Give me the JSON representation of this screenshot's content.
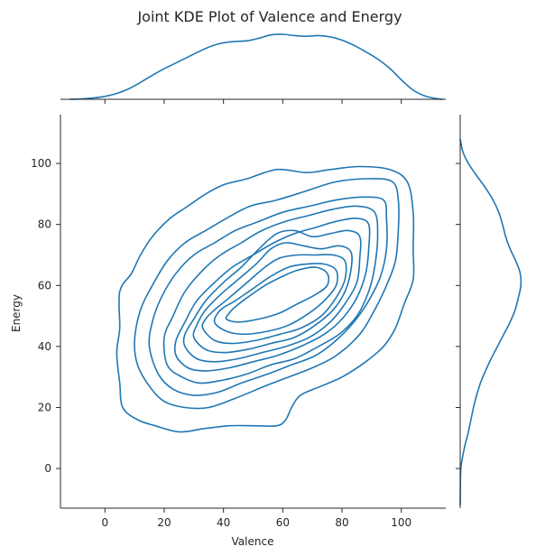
{
  "chart_data": {
    "type": "kde-joint",
    "title": "Joint KDE Plot of Valence and Energy",
    "xlabel": "Valence",
    "ylabel": "Energy",
    "xlim": [
      -15,
      115
    ],
    "ylim": [
      -13,
      116
    ],
    "xticks": [
      0,
      20,
      40,
      60,
      80,
      100
    ],
    "yticks": [
      0,
      20,
      40,
      60,
      80,
      100
    ],
    "grid": false,
    "color": "#1f77b4",
    "contours": [
      [
        [
          11,
          16
        ],
        [
          17,
          14
        ],
        [
          25,
          12
        ],
        [
          33,
          13
        ],
        [
          42,
          14
        ],
        [
          50,
          14
        ],
        [
          58,
          14
        ],
        [
          61,
          16
        ],
        [
          63,
          20
        ],
        [
          66,
          24
        ],
        [
          73,
          27
        ],
        [
          80,
          30
        ],
        [
          88,
          35
        ],
        [
          94,
          40
        ],
        [
          98,
          46
        ],
        [
          101,
          54
        ],
        [
          104,
          62
        ],
        [
          104,
          72
        ],
        [
          104,
          84
        ],
        [
          102,
          94
        ],
        [
          96,
          98
        ],
        [
          86,
          99
        ],
        [
          76,
          98
        ],
        [
          68,
          97
        ],
        [
          58,
          98
        ],
        [
          48,
          95
        ],
        [
          40,
          93
        ],
        [
          34,
          90
        ],
        [
          28,
          86
        ],
        [
          22,
          82
        ],
        [
          16,
          76
        ],
        [
          12,
          70
        ],
        [
          9,
          64
        ],
        [
          5,
          58
        ],
        [
          5,
          46
        ],
        [
          4,
          38
        ],
        [
          5,
          28
        ],
        [
          6,
          20
        ]
      ],
      [
        [
          15,
          27
        ],
        [
          20,
          22
        ],
        [
          27,
          20
        ],
        [
          35,
          20
        ],
        [
          44,
          23
        ],
        [
          54,
          27
        ],
        [
          62,
          30
        ],
        [
          70,
          33
        ],
        [
          78,
          37
        ],
        [
          86,
          44
        ],
        [
          91,
          52
        ],
        [
          95,
          60
        ],
        [
          98,
          68
        ],
        [
          99,
          78
        ],
        [
          99,
          88
        ],
        [
          97,
          94
        ],
        [
          89,
          95
        ],
        [
          78,
          94
        ],
        [
          68,
          91
        ],
        [
          58,
          88
        ],
        [
          49,
          86
        ],
        [
          41,
          82
        ],
        [
          34,
          78
        ],
        [
          27,
          74
        ],
        [
          21,
          68
        ],
        [
          16,
          60
        ],
        [
          12,
          52
        ],
        [
          10,
          42
        ],
        [
          11,
          34
        ]
      ],
      [
        [
          18,
          31
        ],
        [
          23,
          26
        ],
        [
          30,
          24
        ],
        [
          38,
          25
        ],
        [
          46,
          28
        ],
        [
          55,
          31
        ],
        [
          63,
          34
        ],
        [
          71,
          37
        ],
        [
          78,
          42
        ],
        [
          84,
          48
        ],
        [
          89,
          55
        ],
        [
          93,
          63
        ],
        [
          95,
          72
        ],
        [
          95,
          82
        ],
        [
          94,
          88
        ],
        [
          87,
          89
        ],
        [
          78,
          88
        ],
        [
          69,
          86
        ],
        [
          60,
          84
        ],
        [
          52,
          81
        ],
        [
          44,
          78
        ],
        [
          37,
          74
        ],
        [
          30,
          70
        ],
        [
          24,
          64
        ],
        [
          19,
          56
        ],
        [
          16,
          48
        ],
        [
          15,
          40
        ]
      ],
      [
        [
          21,
          34
        ],
        [
          26,
          30
        ],
        [
          32,
          28
        ],
        [
          40,
          29
        ],
        [
          48,
          31
        ],
        [
          56,
          34
        ],
        [
          64,
          36
        ],
        [
          72,
          40
        ],
        [
          79,
          44
        ],
        [
          85,
          50
        ],
        [
          89,
          58
        ],
        [
          91,
          66
        ],
        [
          92,
          76
        ],
        [
          91,
          84
        ],
        [
          85,
          86
        ],
        [
          77,
          85
        ],
        [
          69,
          83
        ],
        [
          61,
          81
        ],
        [
          53,
          78
        ],
        [
          46,
          74
        ],
        [
          39,
          70
        ],
        [
          33,
          65
        ],
        [
          27,
          58
        ],
        [
          23,
          50
        ],
        [
          20,
          43
        ]
      ],
      [
        [
          24,
          37
        ],
        [
          28,
          33
        ],
        [
          34,
          32
        ],
        [
          42,
          33
        ],
        [
          50,
          35
        ],
        [
          58,
          37
        ],
        [
          66,
          40
        ],
        [
          74,
          44
        ],
        [
          80,
          49
        ],
        [
          85,
          56
        ],
        [
          88,
          64
        ],
        [
          89,
          72
        ],
        [
          89,
          80
        ],
        [
          85,
          82
        ],
        [
          78,
          81
        ],
        [
          71,
          79
        ],
        [
          64,
          77
        ],
        [
          57,
          74
        ],
        [
          50,
          70
        ],
        [
          43,
          66
        ],
        [
          37,
          61
        ],
        [
          31,
          55
        ],
        [
          27,
          48
        ],
        [
          24,
          42
        ]
      ],
      [
        [
          27,
          40
        ],
        [
          31,
          36
        ],
        [
          37,
          35
        ],
        [
          45,
          36
        ],
        [
          53,
          38
        ],
        [
          61,
          40
        ],
        [
          69,
          43
        ],
        [
          76,
          48
        ],
        [
          81,
          54
        ],
        [
          85,
          61
        ],
        [
          86,
          69
        ],
        [
          86,
          76
        ],
        [
          82,
          78
        ],
        [
          76,
          77
        ],
        [
          70,
          76
        ],
        [
          64,
          78
        ],
        [
          58,
          77
        ],
        [
          52,
          72
        ],
        [
          46,
          66
        ],
        [
          40,
          61
        ],
        [
          34,
          55
        ],
        [
          30,
          49
        ],
        [
          27,
          44
        ]
      ],
      [
        [
          30,
          43
        ],
        [
          34,
          39
        ],
        [
          40,
          38
        ],
        [
          48,
          39
        ],
        [
          56,
          41
        ],
        [
          64,
          43
        ],
        [
          71,
          47
        ],
        [
          77,
          52
        ],
        [
          81,
          58
        ],
        [
          83,
          65
        ],
        [
          83,
          71
        ],
        [
          79,
          73
        ],
        [
          73,
          72
        ],
        [
          67,
          73
        ],
        [
          61,
          74
        ],
        [
          56,
          72
        ],
        [
          51,
          67
        ],
        [
          45,
          62
        ],
        [
          39,
          57
        ],
        [
          34,
          52
        ],
        [
          31,
          47
        ]
      ],
      [
        [
          33,
          46
        ],
        [
          37,
          42
        ],
        [
          43,
          41
        ],
        [
          51,
          42
        ],
        [
          59,
          44
        ],
        [
          66,
          46
        ],
        [
          73,
          50
        ],
        [
          78,
          56
        ],
        [
          81,
          62
        ],
        [
          81,
          68
        ],
        [
          77,
          70
        ],
        [
          71,
          70
        ],
        [
          65,
          70
        ],
        [
          59,
          69
        ],
        [
          54,
          66
        ],
        [
          48,
          61
        ],
        [
          42,
          56
        ],
        [
          37,
          52
        ],
        [
          34,
          49
        ]
      ],
      [
        [
          37,
          48
        ],
        [
          41,
          45
        ],
        [
          47,
          44
        ],
        [
          55,
          45
        ],
        [
          62,
          47
        ],
        [
          69,
          51
        ],
        [
          74,
          55
        ],
        [
          78,
          60
        ],
        [
          78,
          65
        ],
        [
          74,
          67
        ],
        [
          68,
          67
        ],
        [
          62,
          66
        ],
        [
          56,
          63
        ],
        [
          50,
          59
        ],
        [
          44,
          55
        ],
        [
          39,
          52
        ]
      ],
      [
        [
          41,
          49
        ],
        [
          45,
          48
        ],
        [
          52,
          49
        ],
        [
          59,
          51
        ],
        [
          65,
          54
        ],
        [
          71,
          57
        ],
        [
          75,
          60
        ],
        [
          75,
          64
        ],
        [
          71,
          66
        ],
        [
          65,
          65
        ],
        [
          60,
          63
        ],
        [
          54,
          60
        ],
        [
          48,
          56
        ],
        [
          44,
          53
        ],
        [
          42,
          51
        ]
      ]
    ],
    "x_marginal": [
      [
        -12,
        0.0
      ],
      [
        -8,
        0.005
      ],
      [
        -4,
        0.02
      ],
      [
        0,
        0.045
      ],
      [
        4,
        0.09
      ],
      [
        8,
        0.16
      ],
      [
        12,
        0.26
      ],
      [
        16,
        0.37
      ],
      [
        20,
        0.47
      ],
      [
        24,
        0.56
      ],
      [
        28,
        0.65
      ],
      [
        32,
        0.74
      ],
      [
        36,
        0.82
      ],
      [
        40,
        0.87
      ],
      [
        44,
        0.89
      ],
      [
        48,
        0.9
      ],
      [
        52,
        0.94
      ],
      [
        56,
        0.99
      ],
      [
        60,
        1.0
      ],
      [
        64,
        0.98
      ],
      [
        68,
        0.97
      ],
      [
        72,
        0.98
      ],
      [
        76,
        0.96
      ],
      [
        80,
        0.91
      ],
      [
        84,
        0.83
      ],
      [
        88,
        0.73
      ],
      [
        92,
        0.62
      ],
      [
        96,
        0.48
      ],
      [
        100,
        0.3
      ],
      [
        104,
        0.14
      ],
      [
        108,
        0.05
      ],
      [
        112,
        0.01
      ],
      [
        114,
        0.0
      ]
    ],
    "y_marginal": [
      [
        -12,
        0.0
      ],
      [
        -6,
        0.003
      ],
      [
        0,
        0.01
      ],
      [
        4,
        0.04
      ],
      [
        8,
        0.08
      ],
      [
        12,
        0.13
      ],
      [
        16,
        0.17
      ],
      [
        20,
        0.21
      ],
      [
        24,
        0.26
      ],
      [
        28,
        0.32
      ],
      [
        32,
        0.4
      ],
      [
        36,
        0.49
      ],
      [
        40,
        0.59
      ],
      [
        44,
        0.69
      ],
      [
        48,
        0.79
      ],
      [
        52,
        0.87
      ],
      [
        56,
        0.92
      ],
      [
        60,
        0.96
      ],
      [
        64,
        0.95
      ],
      [
        68,
        0.88
      ],
      [
        72,
        0.79
      ],
      [
        76,
        0.72
      ],
      [
        80,
        0.67
      ],
      [
        84,
        0.61
      ],
      [
        88,
        0.52
      ],
      [
        92,
        0.4
      ],
      [
        96,
        0.26
      ],
      [
        100,
        0.13
      ],
      [
        104,
        0.04
      ],
      [
        108,
        0.0
      ]
    ]
  }
}
